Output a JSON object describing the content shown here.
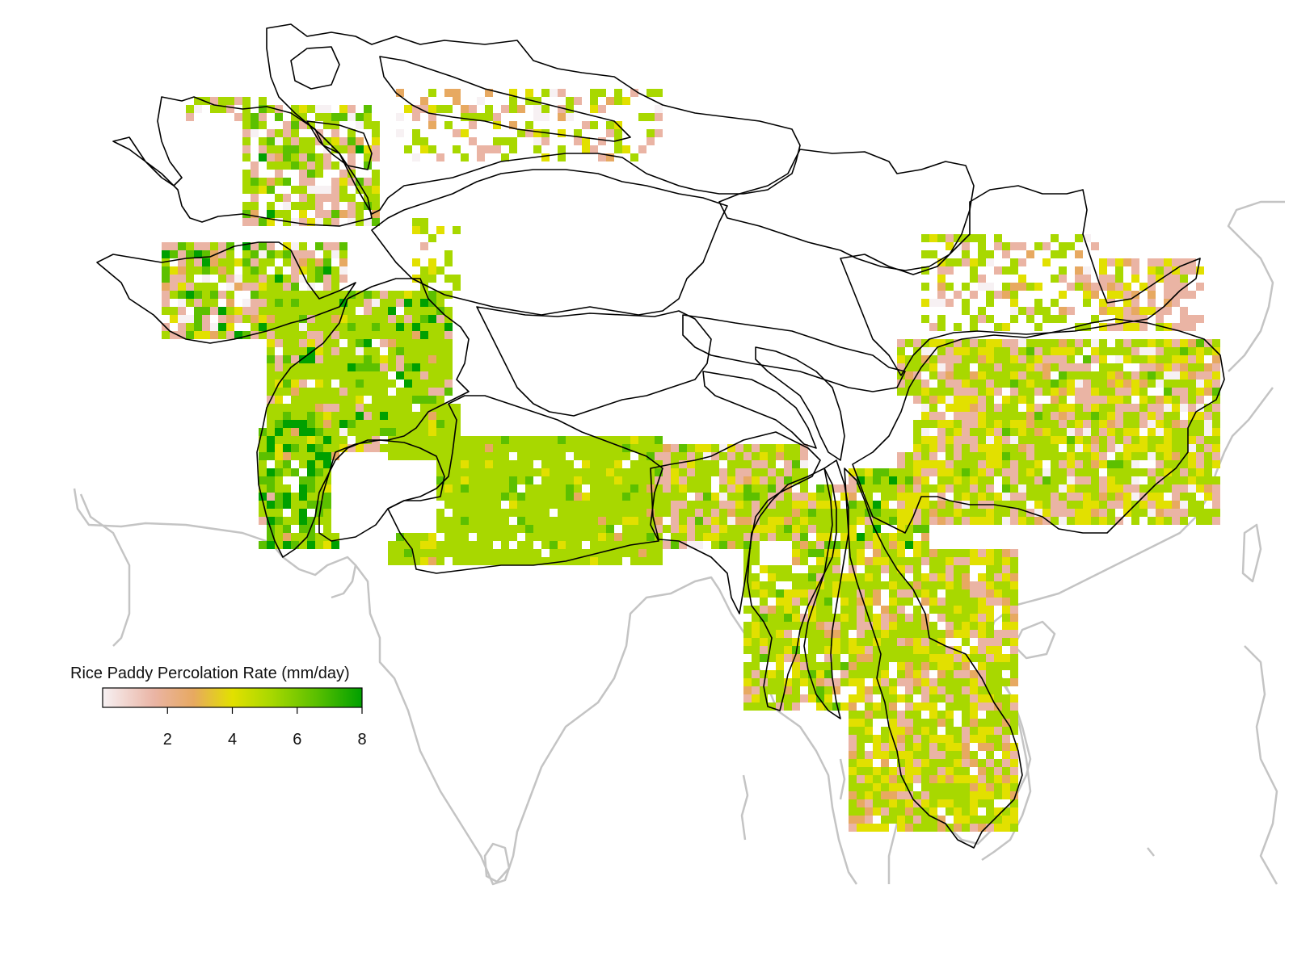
{
  "legend": {
    "title": "Rice Paddy Percolation Rate (mm/day)",
    "ticks": [
      "2",
      "4",
      "6",
      "8"
    ],
    "range": [
      0,
      8
    ],
    "color_stops": [
      "#f7f1f3",
      "#eab4a4",
      "#e7a961",
      "#e2e000",
      "#a8d800",
      "#5cc000",
      "#00a000"
    ]
  },
  "colors": {
    "coast": "#c0c0c0",
    "boundary": "#000000",
    "background": "#ffffff"
  }
}
